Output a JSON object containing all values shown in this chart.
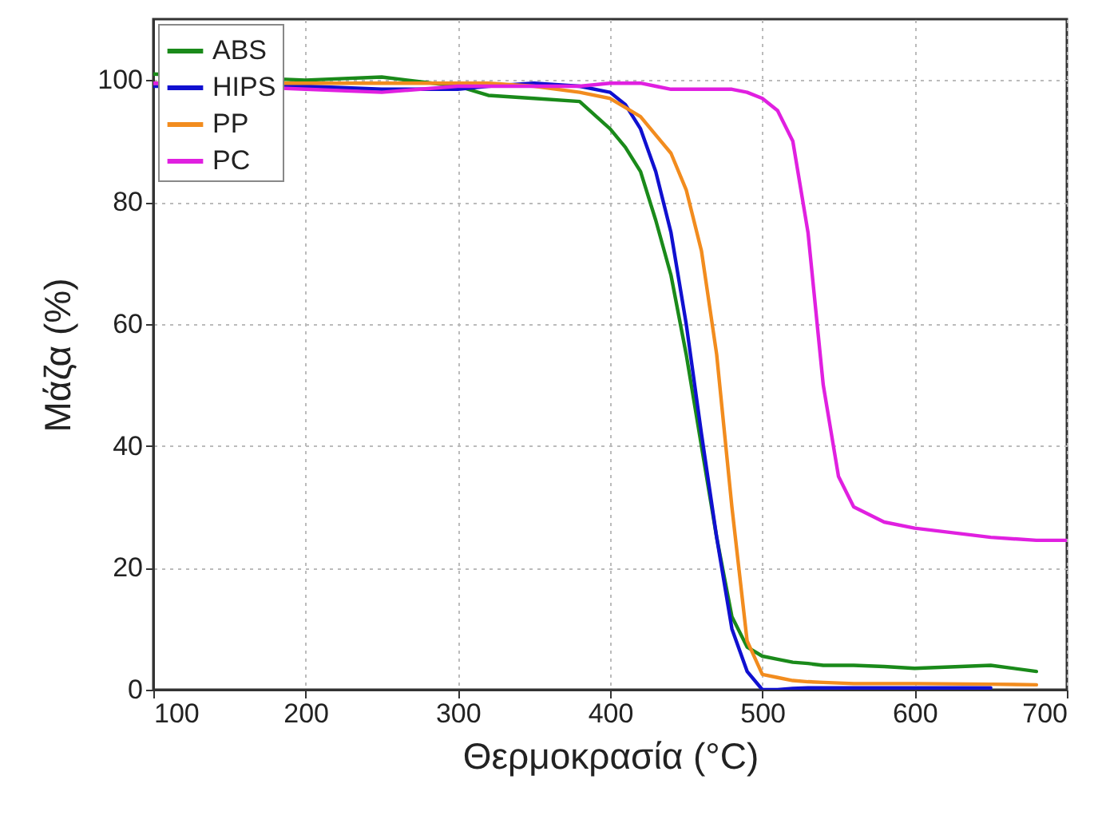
{
  "chart_data": {
    "type": "line",
    "xlabel": "Θερμοκρασία (°C)",
    "ylabel": "Μάζα (%)",
    "xlim": [
      100,
      700
    ],
    "ylim": [
      0,
      110
    ],
    "xticks": [
      100,
      200,
      300,
      400,
      500,
      600,
      700
    ],
    "yticks": [
      0,
      20,
      40,
      60,
      80,
      100
    ],
    "grid": true,
    "legend": "top left",
    "line_style": "solid",
    "marker": "none",
    "x": [
      100,
      200,
      250,
      300,
      320,
      350,
      380,
      400,
      410,
      420,
      430,
      440,
      450,
      460,
      470,
      480,
      490,
      500,
      510,
      520,
      530,
      540,
      550,
      560,
      580,
      600,
      650,
      680,
      700
    ],
    "series": [
      {
        "name": "ABS",
        "color": "#1a8a1a",
        "values": [
          101,
          100,
          100.5,
          99,
          97.5,
          97,
          96.5,
          92,
          89,
          85,
          77,
          68,
          55,
          40,
          25,
          12,
          7,
          5.5,
          5,
          4.5,
          4.3,
          4,
          4,
          4,
          3.8,
          3.5,
          4,
          3,
          null
        ]
      },
      {
        "name": "HIPS",
        "color": "#1010d0",
        "values": [
          99,
          99,
          98.5,
          98.5,
          99,
          99.5,
          99,
          98,
          96,
          92,
          85,
          75,
          60,
          42,
          25,
          10,
          3,
          0,
          0,
          0.2,
          0.3,
          0.3,
          0.3,
          0.3,
          0.3,
          0.3,
          0.3,
          null,
          null
        ]
      },
      {
        "name": "PP",
        "color": "#f28c1e",
        "values": [
          99.5,
          99.5,
          99.5,
          99.5,
          99.5,
          99,
          98,
          97,
          95.5,
          94,
          91,
          88,
          82,
          72,
          55,
          30,
          8,
          2.5,
          2,
          1.5,
          1.3,
          1.2,
          1.1,
          1,
          1,
          1,
          0.9,
          0.8,
          null
        ]
      },
      {
        "name": "PC",
        "color": "#e020e0",
        "values": [
          99.5,
          98.5,
          98,
          99,
          99,
          99,
          99,
          99.5,
          99.5,
          99.5,
          99,
          98.5,
          98.5,
          98.5,
          98.5,
          98.5,
          98,
          97,
          95,
          90,
          75,
          50,
          35,
          30,
          27.5,
          26.5,
          25,
          24.5,
          24.5
        ]
      }
    ]
  }
}
